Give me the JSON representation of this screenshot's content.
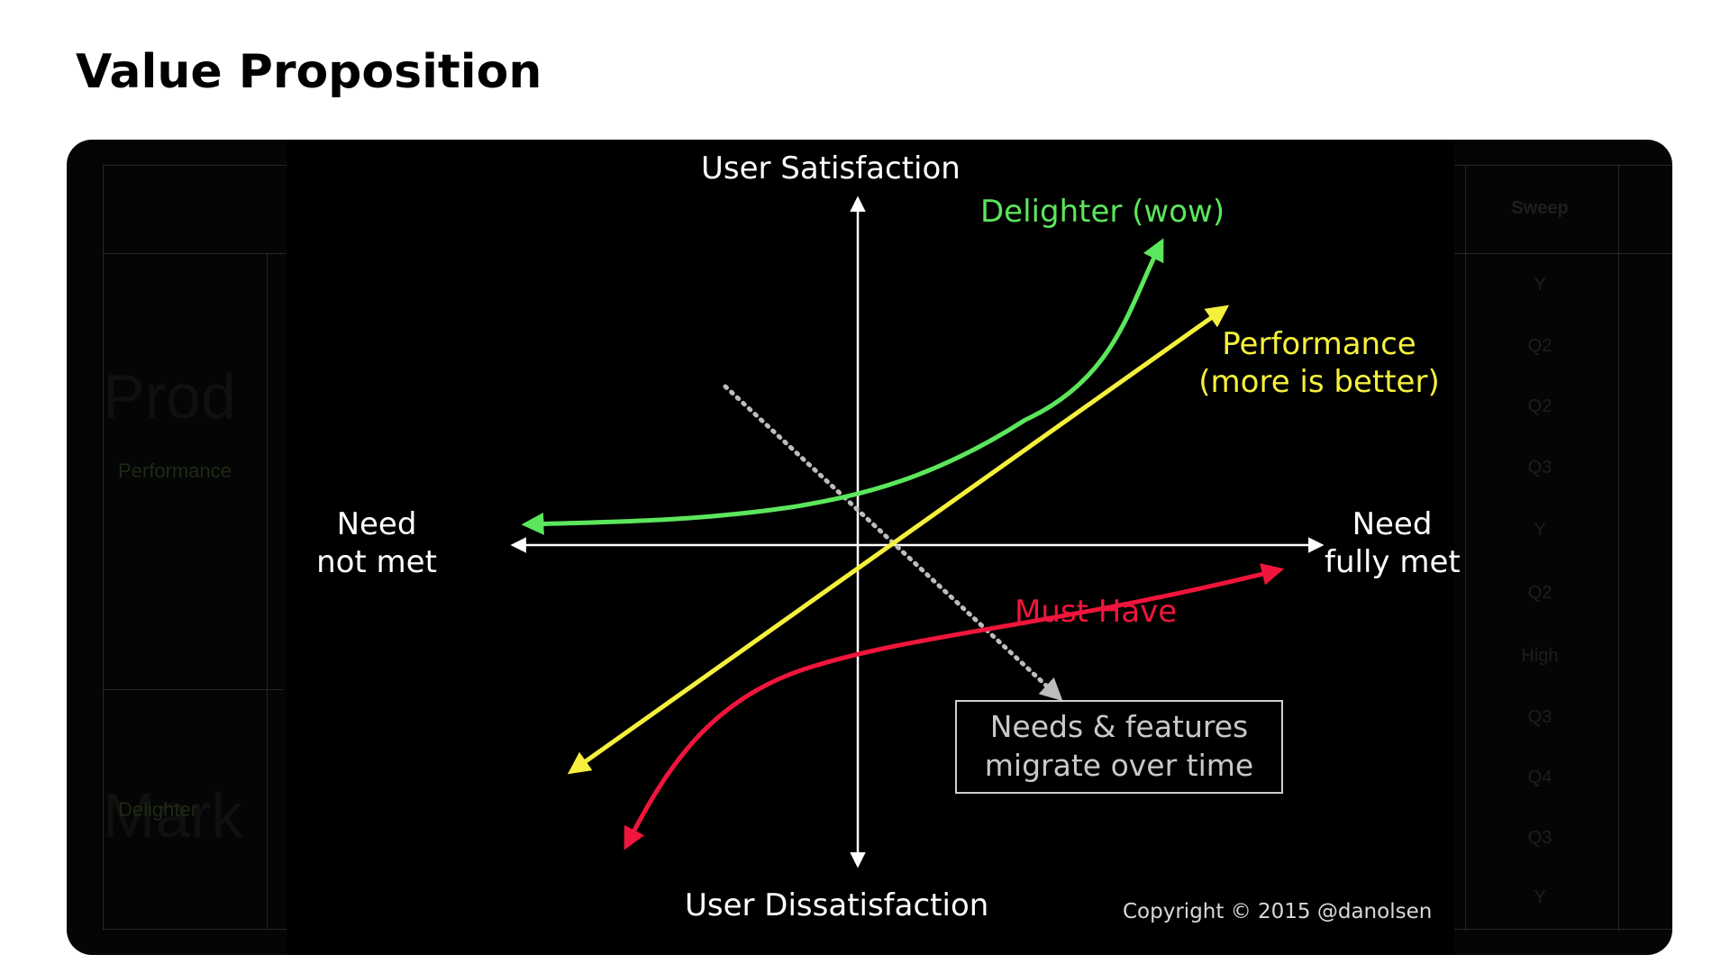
{
  "page": {
    "title": "Value Proposition"
  },
  "background_table": {
    "left_labels": [
      "Performance",
      "Delighter"
    ],
    "watermark_words": [
      "Prod",
      "Mark"
    ],
    "right_column_header": "Sweep",
    "right_column_values": [
      "Y",
      "Q2",
      "Q2",
      "Q3",
      "Y",
      "Q2",
      "High",
      "Q3",
      "Q4",
      "Q3",
      "Y"
    ]
  },
  "diagram": {
    "y_axis_top": "User Satisfaction",
    "y_axis_bottom": "User Dissatisfaction",
    "x_axis_left_line1": "Need",
    "x_axis_left_line2": "not met",
    "x_axis_right_line1": "Need",
    "x_axis_right_line2": "fully met",
    "curves": [
      {
        "name": "Delighter (wow)",
        "color": "#5ce65c"
      },
      {
        "name": "Performance",
        "subtitle": "(more is better)",
        "color": "#f5f03c"
      },
      {
        "name": "Must Have",
        "color": "#f0153c"
      }
    ],
    "migration_note_line1": "Needs & features",
    "migration_note_line2": "migrate over time",
    "copyright": "Copyright © 2015 @danolsen"
  },
  "colors": {
    "axis": "#ffffff",
    "migration_arrow": "#bdbdbd",
    "note_text": "#c8c8c8"
  }
}
